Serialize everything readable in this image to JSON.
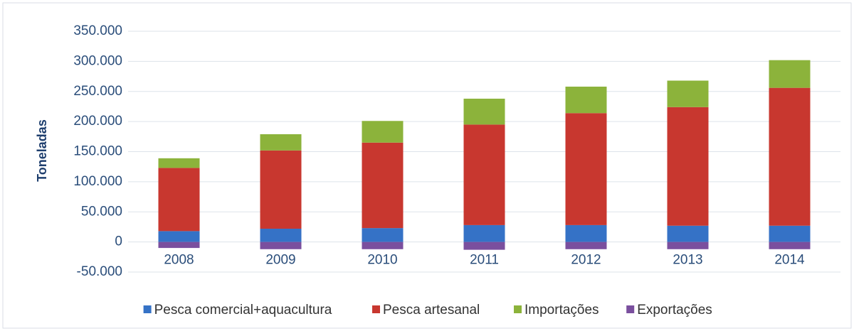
{
  "chart_data": {
    "type": "stacked_bar",
    "ylabel": "Toneladas",
    "categories": [
      "2008",
      "2009",
      "2010",
      "2011",
      "2012",
      "2013",
      "2014"
    ],
    "series": [
      {
        "name": "Pesca comercial+aquacultura",
        "color": "#3572c6",
        "values": [
          18000,
          22000,
          23000,
          28000,
          28000,
          27000,
          27000
        ]
      },
      {
        "name": "Pesca artesanal",
        "color": "#c8372f",
        "values": [
          105000,
          130000,
          142000,
          167000,
          186000,
          197000,
          229000
        ]
      },
      {
        "name": "Importações",
        "color": "#8cb33b",
        "values": [
          16000,
          27000,
          36000,
          43000,
          44000,
          44000,
          46000
        ]
      },
      {
        "name": "Exportações",
        "color": "#7a4f9e",
        "values": [
          -10000,
          -12000,
          -12000,
          -13000,
          -12000,
          -12000,
          -12000
        ]
      }
    ],
    "ylim": [
      -50000,
      350000
    ],
    "yticks": [
      {
        "value": -50000,
        "label": "-50.000"
      },
      0,
      {
        "value": 50000,
        "label": "50.000"
      },
      {
        "value": 100000,
        "label": "100.000"
      },
      {
        "value": 150000,
        "label": "150.000"
      },
      {
        "value": 200000,
        "label": "200.000"
      },
      {
        "value": 250000,
        "label": "250.000"
      },
      {
        "value": 300000,
        "label": "300.000"
      },
      {
        "value": 350000,
        "label": "350.000"
      }
    ],
    "grid": true,
    "legend": "bottom"
  }
}
